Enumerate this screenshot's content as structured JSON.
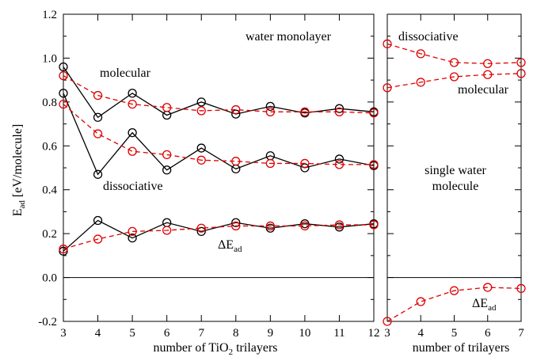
{
  "chart_data": [
    {
      "type": "line",
      "xlabel": "number of TiO",
      "xlabel_sub": "2",
      "xlabel_rest": " trilayers",
      "ylabel": "E",
      "ylabel_sub": "ad",
      "ylabel_rest": "  [eV/molecule]",
      "x": [
        3,
        4,
        5,
        6,
        7,
        8,
        9,
        10,
        11,
        12
      ],
      "xlim": [
        3,
        12
      ],
      "ylim": [
        -0.2,
        1.2
      ],
      "xticks": [
        3,
        4,
        5,
        6,
        7,
        8,
        9,
        10,
        11,
        12
      ],
      "yticks": [
        "-0.2",
        "0.0",
        "0.2",
        "0.4",
        "0.6",
        "0.8",
        "1.0",
        "1.2"
      ],
      "zero_line": true,
      "series": [
        {
          "group": "molecular",
          "method": "black",
          "style": "solid",
          "color": "#000000",
          "values": [
            0.96,
            0.73,
            0.84,
            0.74,
            0.8,
            0.745,
            0.78,
            0.75,
            0.77,
            0.755
          ]
        },
        {
          "group": "molecular",
          "method": "red",
          "style": "dashed",
          "color": "#e00000",
          "values": [
            0.92,
            0.83,
            0.79,
            0.775,
            0.76,
            0.765,
            0.755,
            0.755,
            0.755,
            0.75
          ]
        },
        {
          "group": "dissociative",
          "method": "black",
          "style": "solid",
          "color": "#000000",
          "values": [
            0.84,
            0.47,
            0.66,
            0.49,
            0.59,
            0.495,
            0.555,
            0.5,
            0.54,
            0.51
          ]
        },
        {
          "group": "dissociative",
          "method": "red",
          "style": "dashed",
          "color": "#e00000",
          "values": [
            0.79,
            0.655,
            0.575,
            0.56,
            0.535,
            0.53,
            0.52,
            0.52,
            0.515,
            0.515
          ]
        },
        {
          "group": "delta",
          "method": "black",
          "style": "solid",
          "color": "#000000",
          "values": [
            0.12,
            0.26,
            0.18,
            0.25,
            0.21,
            0.25,
            0.225,
            0.245,
            0.23,
            0.245
          ]
        },
        {
          "group": "delta",
          "method": "red",
          "style": "dashed",
          "color": "#e00000",
          "values": [
            0.13,
            0.175,
            0.21,
            0.215,
            0.225,
            0.235,
            0.235,
            0.235,
            0.24,
            0.24
          ]
        }
      ],
      "annotations": {
        "panel_title": "water monolayer",
        "molecular": "molecular",
        "dissociative": "dissociative",
        "delta": "ΔE",
        "delta_sub": "ad"
      }
    },
    {
      "type": "line",
      "xlabel": "number of trilayers",
      "x": [
        3,
        4,
        5,
        6,
        7
      ],
      "xlim": [
        3,
        7
      ],
      "ylim": [
        -0.2,
        1.2
      ],
      "xticks": [
        3,
        4,
        5,
        6,
        7
      ],
      "zero_line": true,
      "series": [
        {
          "group": "dissociative",
          "method": "red",
          "style": "dashed",
          "color": "#e00000",
          "values": [
            1.065,
            1.02,
            0.98,
            0.975,
            0.98
          ]
        },
        {
          "group": "molecular",
          "method": "red",
          "style": "dashed",
          "color": "#e00000",
          "values": [
            0.865,
            0.89,
            0.915,
            0.925,
            0.93
          ]
        },
        {
          "group": "delta",
          "method": "red",
          "style": "dashed",
          "color": "#e00000",
          "values": [
            -0.2,
            -0.11,
            -0.06,
            -0.045,
            -0.05
          ]
        }
      ],
      "annotations": {
        "dissociative": "dissociative",
        "molecular": "molecular",
        "panel_title_line1": "single water",
        "panel_title_line2": "molecule",
        "delta": "ΔE",
        "delta_sub": "ad"
      }
    }
  ]
}
